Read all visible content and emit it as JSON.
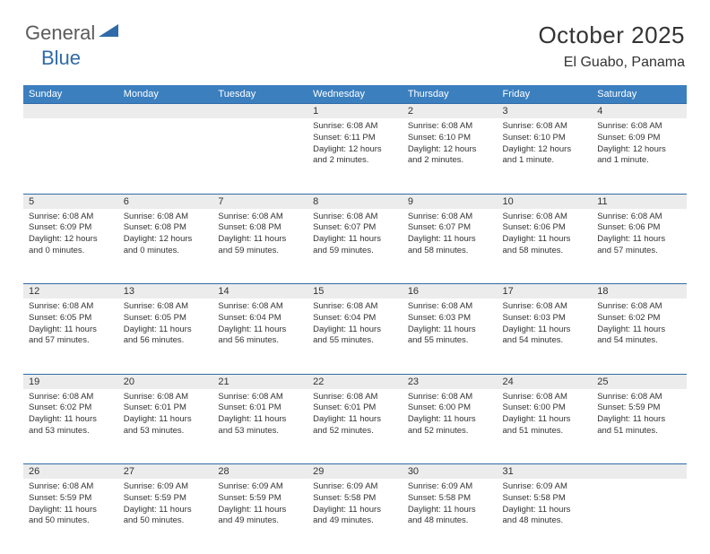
{
  "logo": {
    "general": "General",
    "blue": "Blue"
  },
  "title": {
    "month": "October 2025",
    "location": "El Guabo, Panama"
  },
  "colors": {
    "header_bg": "#3b7fbf",
    "header_text": "#ffffff",
    "daynum_bg": "#ececec",
    "border": "#2f6ba8",
    "logo_gray": "#5b5b5b",
    "logo_blue": "#2f6ba8",
    "text": "#333333",
    "page_bg": "#ffffff"
  },
  "day_headers": [
    "Sunday",
    "Monday",
    "Tuesday",
    "Wednesday",
    "Thursday",
    "Friday",
    "Saturday"
  ],
  "weeks": [
    [
      null,
      null,
      null,
      {
        "n": "1",
        "sr": "6:08 AM",
        "ss": "6:11 PM",
        "dl": "12 hours and 2 minutes."
      },
      {
        "n": "2",
        "sr": "6:08 AM",
        "ss": "6:10 PM",
        "dl": "12 hours and 2 minutes."
      },
      {
        "n": "3",
        "sr": "6:08 AM",
        "ss": "6:10 PM",
        "dl": "12 hours and 1 minute."
      },
      {
        "n": "4",
        "sr": "6:08 AM",
        "ss": "6:09 PM",
        "dl": "12 hours and 1 minute."
      }
    ],
    [
      {
        "n": "5",
        "sr": "6:08 AM",
        "ss": "6:09 PM",
        "dl": "12 hours and 0 minutes."
      },
      {
        "n": "6",
        "sr": "6:08 AM",
        "ss": "6:08 PM",
        "dl": "12 hours and 0 minutes."
      },
      {
        "n": "7",
        "sr": "6:08 AM",
        "ss": "6:08 PM",
        "dl": "11 hours and 59 minutes."
      },
      {
        "n": "8",
        "sr": "6:08 AM",
        "ss": "6:07 PM",
        "dl": "11 hours and 59 minutes."
      },
      {
        "n": "9",
        "sr": "6:08 AM",
        "ss": "6:07 PM",
        "dl": "11 hours and 58 minutes."
      },
      {
        "n": "10",
        "sr": "6:08 AM",
        "ss": "6:06 PM",
        "dl": "11 hours and 58 minutes."
      },
      {
        "n": "11",
        "sr": "6:08 AM",
        "ss": "6:06 PM",
        "dl": "11 hours and 57 minutes."
      }
    ],
    [
      {
        "n": "12",
        "sr": "6:08 AM",
        "ss": "6:05 PM",
        "dl": "11 hours and 57 minutes."
      },
      {
        "n": "13",
        "sr": "6:08 AM",
        "ss": "6:05 PM",
        "dl": "11 hours and 56 minutes."
      },
      {
        "n": "14",
        "sr": "6:08 AM",
        "ss": "6:04 PM",
        "dl": "11 hours and 56 minutes."
      },
      {
        "n": "15",
        "sr": "6:08 AM",
        "ss": "6:04 PM",
        "dl": "11 hours and 55 minutes."
      },
      {
        "n": "16",
        "sr": "6:08 AM",
        "ss": "6:03 PM",
        "dl": "11 hours and 55 minutes."
      },
      {
        "n": "17",
        "sr": "6:08 AM",
        "ss": "6:03 PM",
        "dl": "11 hours and 54 minutes."
      },
      {
        "n": "18",
        "sr": "6:08 AM",
        "ss": "6:02 PM",
        "dl": "11 hours and 54 minutes."
      }
    ],
    [
      {
        "n": "19",
        "sr": "6:08 AM",
        "ss": "6:02 PM",
        "dl": "11 hours and 53 minutes."
      },
      {
        "n": "20",
        "sr": "6:08 AM",
        "ss": "6:01 PM",
        "dl": "11 hours and 53 minutes."
      },
      {
        "n": "21",
        "sr": "6:08 AM",
        "ss": "6:01 PM",
        "dl": "11 hours and 53 minutes."
      },
      {
        "n": "22",
        "sr": "6:08 AM",
        "ss": "6:01 PM",
        "dl": "11 hours and 52 minutes."
      },
      {
        "n": "23",
        "sr": "6:08 AM",
        "ss": "6:00 PM",
        "dl": "11 hours and 52 minutes."
      },
      {
        "n": "24",
        "sr": "6:08 AM",
        "ss": "6:00 PM",
        "dl": "11 hours and 51 minutes."
      },
      {
        "n": "25",
        "sr": "6:08 AM",
        "ss": "5:59 PM",
        "dl": "11 hours and 51 minutes."
      }
    ],
    [
      {
        "n": "26",
        "sr": "6:08 AM",
        "ss": "5:59 PM",
        "dl": "11 hours and 50 minutes."
      },
      {
        "n": "27",
        "sr": "6:09 AM",
        "ss": "5:59 PM",
        "dl": "11 hours and 50 minutes."
      },
      {
        "n": "28",
        "sr": "6:09 AM",
        "ss": "5:59 PM",
        "dl": "11 hours and 49 minutes."
      },
      {
        "n": "29",
        "sr": "6:09 AM",
        "ss": "5:58 PM",
        "dl": "11 hours and 49 minutes."
      },
      {
        "n": "30",
        "sr": "6:09 AM",
        "ss": "5:58 PM",
        "dl": "11 hours and 48 minutes."
      },
      {
        "n": "31",
        "sr": "6:09 AM",
        "ss": "5:58 PM",
        "dl": "11 hours and 48 minutes."
      },
      null
    ]
  ],
  "labels": {
    "sunrise": "Sunrise:",
    "sunset": "Sunset:",
    "daylight": "Daylight:"
  }
}
